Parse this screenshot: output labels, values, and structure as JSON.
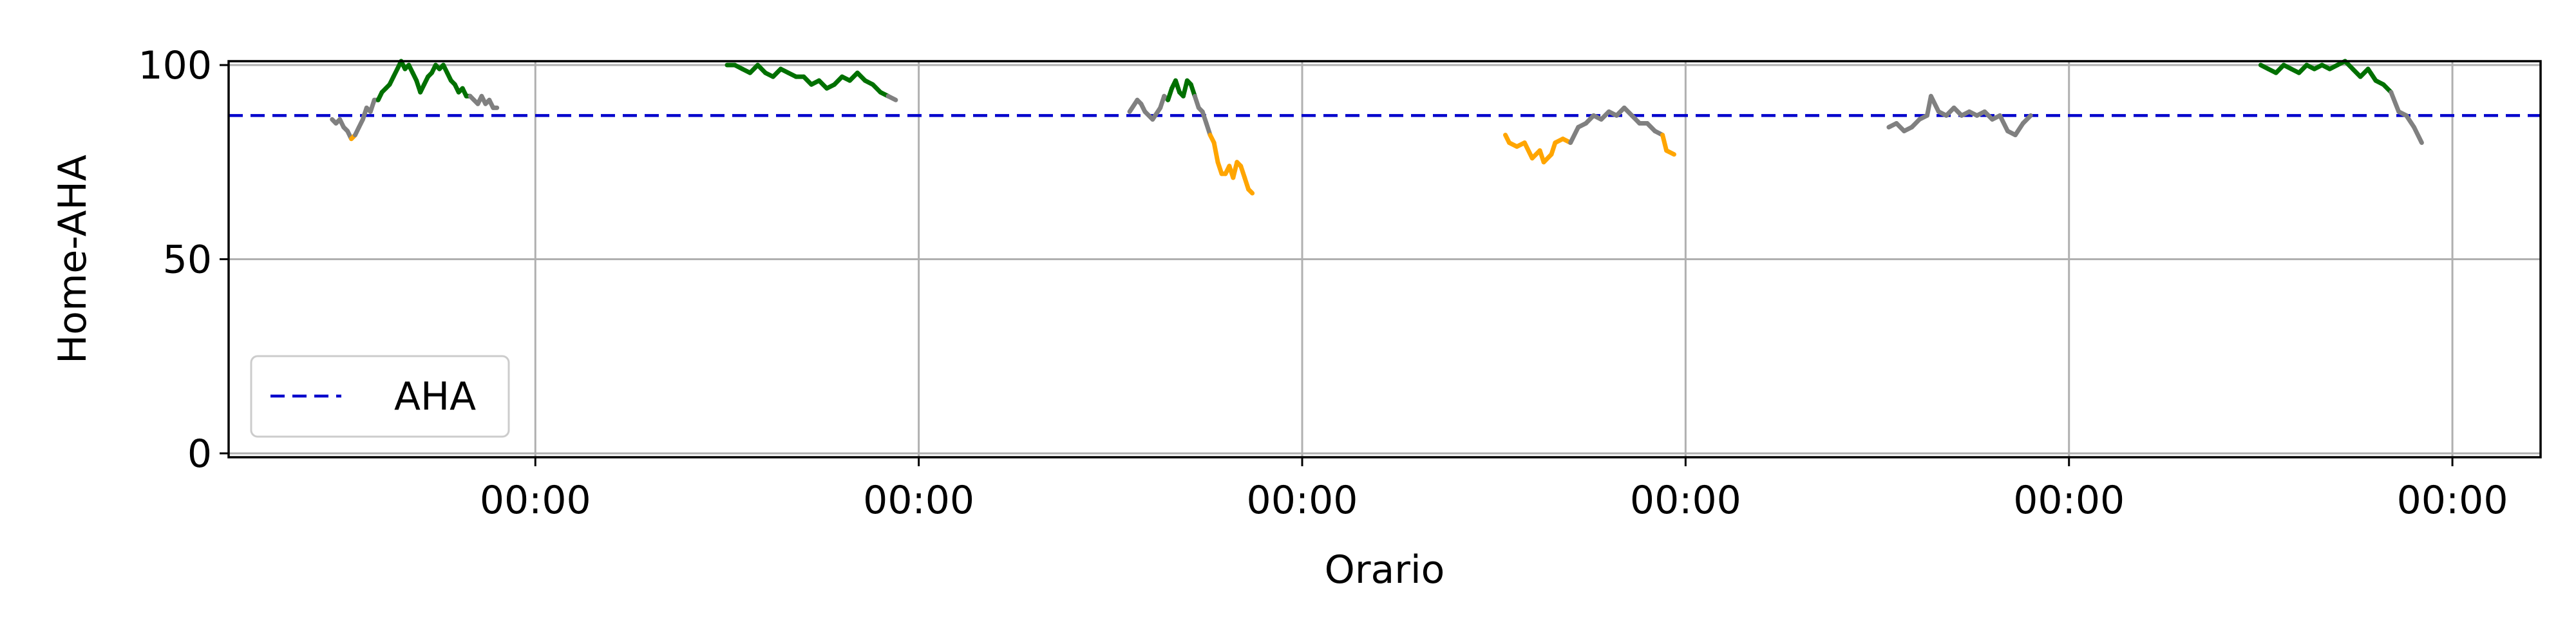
{
  "chart_data": {
    "type": "line",
    "title": "",
    "xlabel": "Orario",
    "ylabel": "Home-AHA",
    "ylim": [
      -1,
      101
    ],
    "xlim": [
      -0.8,
      5.23
    ],
    "y_ticks": [
      0,
      50,
      100
    ],
    "x_ticks": [
      0,
      1,
      2,
      3,
      4,
      5
    ],
    "x_tick_labels": [
      "00:00",
      "00:00",
      "00:00",
      "00:00",
      "00:00",
      "00:00"
    ],
    "grid": true,
    "legend_position": "lower-left",
    "reference_line": {
      "name": "AHA",
      "value": 87,
      "style": "dashed",
      "color": "#0000cc"
    },
    "level_colors": {
      "high": "#007000",
      "mid": "#808080",
      "low": "#ffa500"
    },
    "series": [
      {
        "values": [
          [
            -0.53,
            86
          ],
          [
            -0.52,
            85
          ],
          [
            -0.51,
            86
          ],
          [
            -0.5,
            84
          ],
          [
            -0.49,
            83
          ],
          [
            -0.48,
            81
          ],
          [
            -0.47,
            82
          ],
          [
            -0.46,
            84
          ],
          [
            -0.45,
            86
          ],
          [
            -0.44,
            89
          ],
          [
            -0.43,
            88
          ],
          [
            -0.42,
            91
          ],
          [
            -0.41,
            91
          ],
          [
            -0.4,
            93
          ],
          [
            -0.39,
            94
          ],
          [
            -0.38,
            95
          ],
          [
            -0.37,
            97
          ],
          [
            -0.36,
            99
          ],
          [
            -0.35,
            101
          ],
          [
            -0.34,
            99
          ],
          [
            -0.33,
            100
          ],
          [
            -0.32,
            98
          ],
          [
            -0.31,
            96
          ],
          [
            -0.3,
            93
          ],
          [
            -0.29,
            95
          ],
          [
            -0.28,
            97
          ],
          [
            -0.27,
            98
          ],
          [
            -0.26,
            100
          ],
          [
            -0.25,
            99
          ],
          [
            -0.24,
            100
          ],
          [
            -0.23,
            98
          ],
          [
            -0.22,
            96
          ],
          [
            -0.21,
            95
          ],
          [
            -0.2,
            93
          ],
          [
            -0.19,
            94
          ],
          [
            -0.18,
            92
          ],
          [
            -0.17,
            92
          ],
          [
            -0.16,
            91
          ],
          [
            -0.15,
            90
          ],
          [
            -0.14,
            92
          ],
          [
            -0.13,
            90
          ],
          [
            -0.12,
            91
          ],
          [
            -0.11,
            89
          ],
          [
            -0.1,
            89
          ]
        ]
      },
      {
        "values": [
          [
            0.5,
            100
          ],
          [
            0.52,
            100
          ],
          [
            0.54,
            99
          ],
          [
            0.56,
            98
          ],
          [
            0.58,
            100
          ],
          [
            0.6,
            98
          ],
          [
            0.62,
            97
          ],
          [
            0.64,
            99
          ],
          [
            0.66,
            98
          ],
          [
            0.68,
            97
          ],
          [
            0.7,
            97
          ],
          [
            0.72,
            95
          ],
          [
            0.74,
            96
          ],
          [
            0.76,
            94
          ],
          [
            0.78,
            95
          ],
          [
            0.8,
            97
          ],
          [
            0.82,
            96
          ],
          [
            0.84,
            98
          ],
          [
            0.86,
            96
          ],
          [
            0.88,
            95
          ],
          [
            0.9,
            93
          ],
          [
            0.92,
            92
          ],
          [
            0.94,
            91
          ]
        ]
      },
      {
        "values": [
          [
            1.55,
            88
          ],
          [
            1.57,
            91
          ],
          [
            1.58,
            90
          ],
          [
            1.59,
            88
          ],
          [
            1.61,
            86
          ],
          [
            1.63,
            89
          ],
          [
            1.64,
            92
          ],
          [
            1.65,
            91
          ],
          [
            1.66,
            94
          ],
          [
            1.67,
            96
          ],
          [
            1.68,
            93
          ],
          [
            1.69,
            92
          ],
          [
            1.7,
            96
          ],
          [
            1.71,
            95
          ],
          [
            1.72,
            92
          ],
          [
            1.73,
            89
          ],
          [
            1.74,
            88
          ],
          [
            1.75,
            85
          ],
          [
            1.76,
            82
          ],
          [
            1.77,
            80
          ],
          [
            1.78,
            75
          ],
          [
            1.79,
            72
          ],
          [
            1.8,
            72
          ],
          [
            1.81,
            74
          ],
          [
            1.82,
            71
          ],
          [
            1.83,
            75
          ],
          [
            1.84,
            74
          ],
          [
            1.85,
            71
          ],
          [
            1.86,
            68
          ],
          [
            1.87,
            67
          ]
        ]
      },
      {
        "values": [
          [
            2.53,
            82
          ],
          [
            2.54,
            80
          ],
          [
            2.56,
            79
          ],
          [
            2.58,
            80
          ],
          [
            2.6,
            76
          ],
          [
            2.62,
            78
          ],
          [
            2.63,
            75
          ],
          [
            2.65,
            77
          ],
          [
            2.66,
            80
          ],
          [
            2.68,
            81
          ],
          [
            2.7,
            80
          ],
          [
            2.72,
            84
          ],
          [
            2.74,
            85
          ],
          [
            2.76,
            87
          ],
          [
            2.78,
            86
          ],
          [
            2.8,
            88
          ],
          [
            2.82,
            87
          ],
          [
            2.84,
            89
          ],
          [
            2.86,
            87
          ],
          [
            2.88,
            85
          ],
          [
            2.9,
            85
          ],
          [
            2.92,
            83
          ],
          [
            2.94,
            82
          ],
          [
            2.95,
            78
          ],
          [
            2.97,
            77
          ]
        ]
      },
      {
        "values": [
          [
            3.53,
            84
          ],
          [
            3.55,
            85
          ],
          [
            3.57,
            83
          ],
          [
            3.59,
            84
          ],
          [
            3.61,
            86
          ],
          [
            3.63,
            87
          ],
          [
            3.64,
            92
          ],
          [
            3.66,
            88
          ],
          [
            3.68,
            87
          ],
          [
            3.7,
            89
          ],
          [
            3.72,
            87
          ],
          [
            3.74,
            88
          ],
          [
            3.76,
            87
          ],
          [
            3.78,
            88
          ],
          [
            3.8,
            86
          ],
          [
            3.82,
            87
          ],
          [
            3.84,
            83
          ],
          [
            3.86,
            82
          ],
          [
            3.88,
            85
          ],
          [
            3.9,
            87
          ]
        ]
      },
      {
        "values": [
          [
            4.5,
            100
          ],
          [
            4.52,
            99
          ],
          [
            4.54,
            98
          ],
          [
            4.56,
            100
          ],
          [
            4.58,
            99
          ],
          [
            4.6,
            98
          ],
          [
            4.62,
            100
          ],
          [
            4.64,
            99
          ],
          [
            4.66,
            100
          ],
          [
            4.68,
            99
          ],
          [
            4.7,
            100
          ],
          [
            4.72,
            101
          ],
          [
            4.74,
            99
          ],
          [
            4.76,
            97
          ],
          [
            4.78,
            99
          ],
          [
            4.8,
            96
          ],
          [
            4.82,
            95
          ],
          [
            4.84,
            93
          ],
          [
            4.86,
            88
          ],
          [
            4.88,
            87
          ],
          [
            4.9,
            84
          ],
          [
            4.92,
            80
          ]
        ]
      }
    ]
  }
}
